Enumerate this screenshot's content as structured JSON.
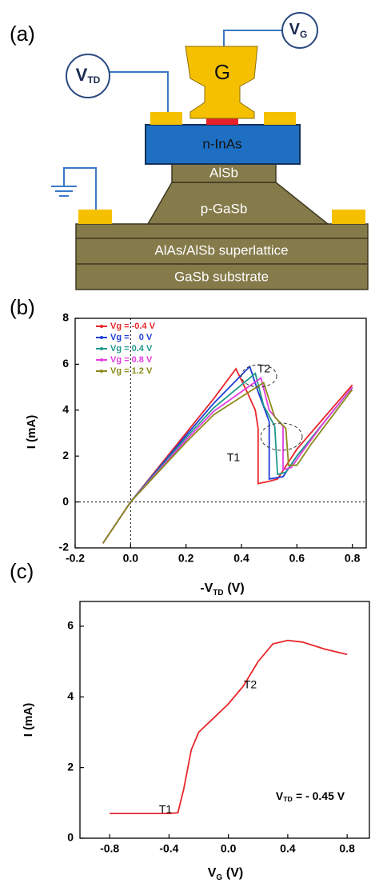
{
  "figure": {
    "panel_labels": [
      "(a)",
      "(b)",
      "(c)"
    ]
  },
  "diagram": {
    "gate": "G",
    "source_label": {
      "main": "V",
      "sub": "TD"
    },
    "gate_label": {
      "main": "V",
      "sub": "G"
    },
    "layers": [
      "n-InAs",
      "AlSb",
      "p-GaSb",
      "AlAs/AlSb superlattice",
      "GaSb substrate"
    ]
  },
  "chart_data": [
    {
      "type": "line",
      "ylabel": "I (mA)",
      "xlabel": [
        "-V",
        "TD",
        "(V)"
      ],
      "xlim": [
        -0.2,
        0.85
      ],
      "ylim": [
        -2,
        8
      ],
      "xticks": [
        -0.2,
        {
          "value": 0,
          "label": "0.0"
        },
        0.2,
        0.4,
        0.6,
        0.8
      ],
      "yticks": [
        -2,
        0,
        2,
        4,
        6,
        8
      ],
      "zero_lines": true,
      "legend": "upper left",
      "annotations": [
        "T2",
        "T1"
      ],
      "series": [
        {
          "name": "Vg = -0.4 V",
          "color": "#e8262b",
          "x": [
            -0.1,
            0,
            0.1,
            0.2,
            0.3,
            0.38,
            0.42,
            0.45,
            0.46,
            0.46,
            0.5,
            0.53,
            0.6,
            0.7,
            0.8
          ],
          "values": [
            -1.8,
            0,
            1.5,
            3.0,
            4.5,
            5.8,
            4.8,
            4.0,
            3.2,
            0.8,
            0.9,
            1.0,
            2.3,
            3.7,
            5.1
          ]
        },
        {
          "name": "Vg =    0 V",
          "color": "#1f3ed6",
          "x": [
            -0.1,
            0,
            0.1,
            0.2,
            0.3,
            0.43,
            0.46,
            0.5,
            0.5,
            0.55,
            0.6,
            0.7,
            0.8
          ],
          "values": [
            -1.8,
            0,
            1.45,
            2.9,
            4.3,
            5.9,
            4.8,
            3.5,
            1.0,
            1.1,
            2.0,
            3.5,
            5.0
          ]
        },
        {
          "name": "Vg = 0.4 V",
          "color": "#1f9a8a",
          "x": [
            -0.1,
            0,
            0.1,
            0.2,
            0.3,
            0.45,
            0.48,
            0.52,
            0.53,
            0.56,
            0.6,
            0.7,
            0.8
          ],
          "values": [
            -1.8,
            0,
            1.4,
            2.8,
            4.1,
            5.6,
            4.2,
            3.3,
            1.2,
            1.3,
            2.0,
            3.5,
            5.0
          ]
        },
        {
          "name": "Vg = 0.8 V",
          "color": "#e23ee0",
          "x": [
            -0.1,
            0,
            0.1,
            0.2,
            0.3,
            0.47,
            0.5,
            0.55,
            0.55,
            0.58,
            0.62,
            0.7,
            0.8
          ],
          "values": [
            -1.8,
            0,
            1.35,
            2.7,
            3.95,
            5.4,
            4.0,
            3.3,
            1.4,
            1.5,
            2.2,
            3.5,
            5.0
          ]
        },
        {
          "name": "Vg = 1.2 V",
          "color": "#8b8a1a",
          "x": [
            -0.1,
            0,
            0.1,
            0.2,
            0.3,
            0.48,
            0.52,
            0.56,
            0.57,
            0.6,
            0.65,
            0.7,
            0.8
          ],
          "values": [
            -1.8,
            0,
            1.3,
            2.6,
            3.8,
            5.2,
            3.7,
            3.2,
            1.6,
            1.6,
            2.5,
            3.3,
            4.9
          ]
        }
      ]
    },
    {
      "type": "line",
      "ylabel": "I (mA)",
      "xlabel": [
        "V",
        "G",
        "(V)"
      ],
      "xlim": [
        -1.0,
        0.95
      ],
      "ylim": [
        0,
        6.7
      ],
      "xticks": [
        -0.8,
        -0.4,
        {
          "value": 0,
          "label": "0.0"
        },
        0.4,
        0.8
      ],
      "yticks": [
        0,
        2,
        4,
        6
      ],
      "annotations": [
        "T1",
        "T2"
      ],
      "note": [
        "V",
        "TD",
        "= - 0.45 V"
      ],
      "series": [
        {
          "color": "#e8262b",
          "x": [
            -0.8,
            -0.6,
            -0.4,
            -0.34,
            -0.3,
            -0.25,
            -0.2,
            -0.1,
            0,
            0.1,
            0.2,
            0.3,
            0.4,
            0.5,
            0.65,
            0.8
          ],
          "values": [
            0.7,
            0.7,
            0.7,
            0.72,
            1.4,
            2.5,
            3.0,
            3.4,
            3.8,
            4.3,
            5.0,
            5.5,
            5.6,
            5.55,
            5.35,
            5.2
          ]
        }
      ]
    }
  ]
}
